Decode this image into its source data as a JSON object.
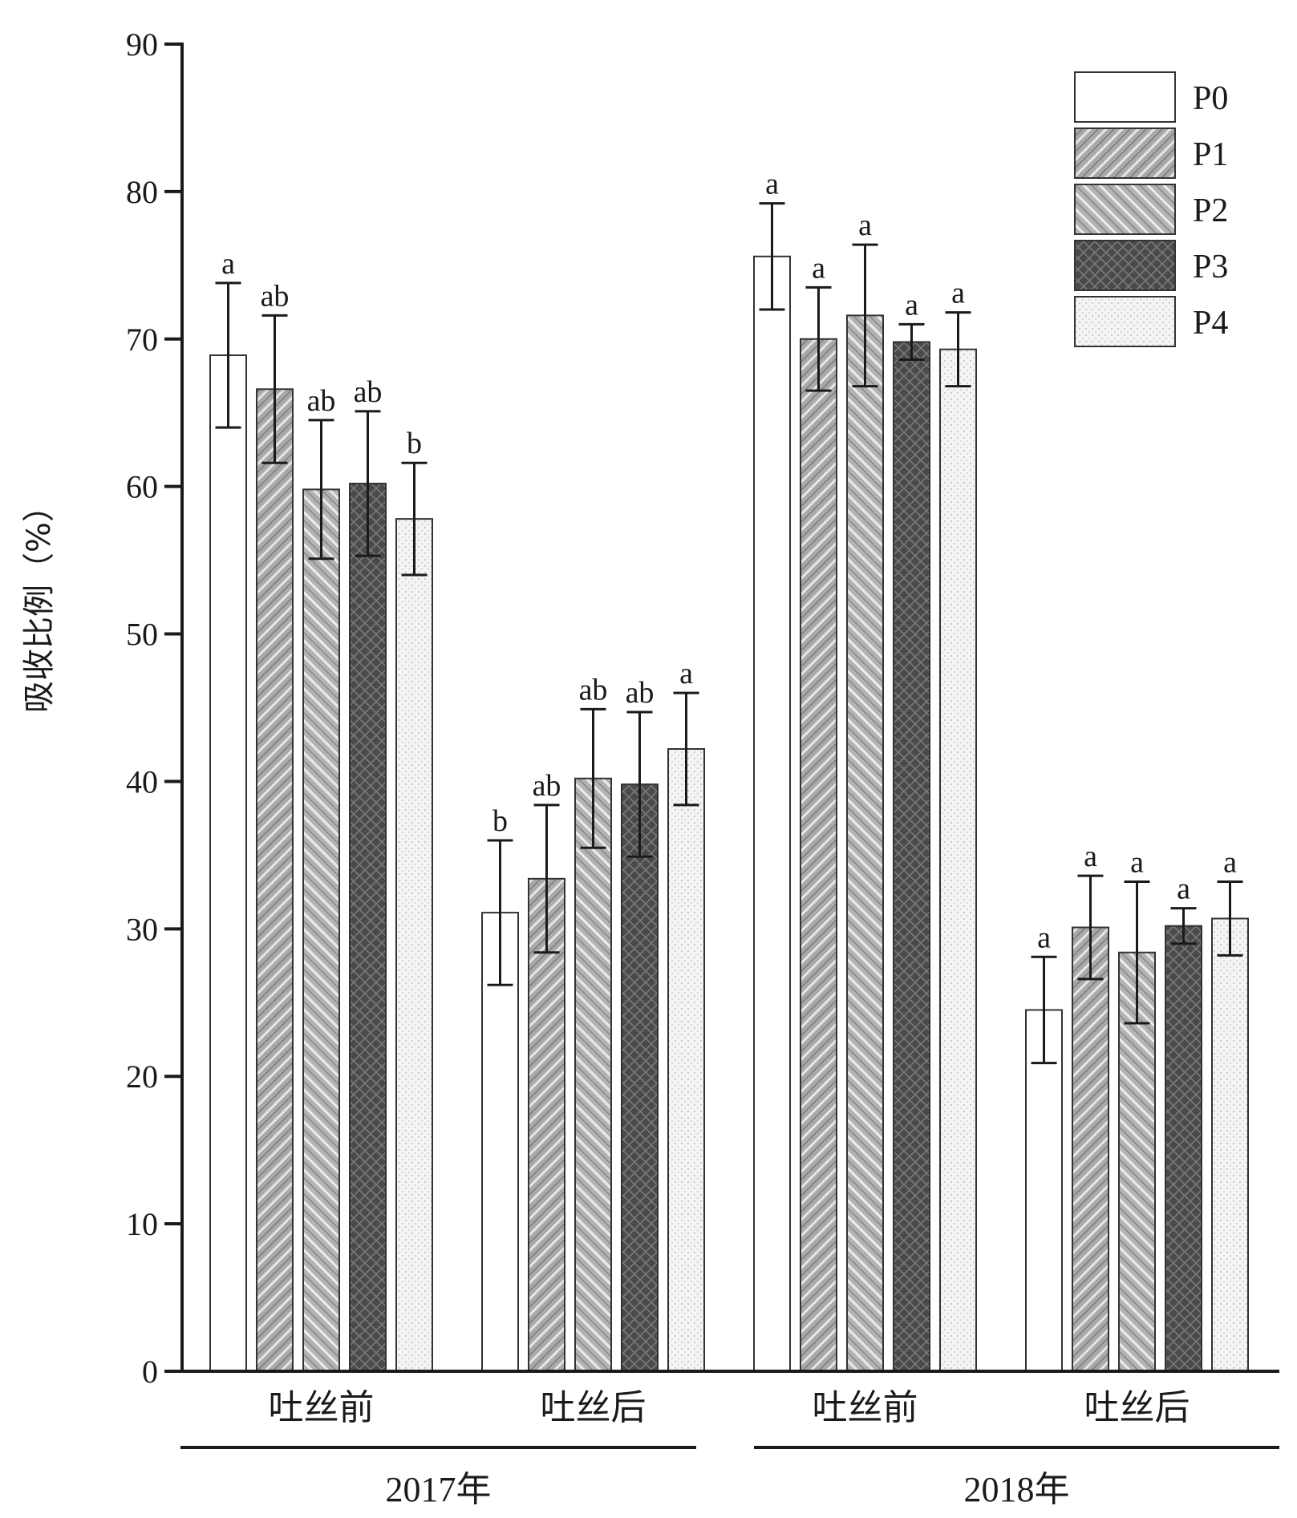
{
  "chart_data": {
    "type": "bar",
    "ylabel": "吸收比例（%）",
    "ylim": [
      0,
      90
    ],
    "yticks": [
      "0",
      "10",
      "20",
      "30",
      "40",
      "50",
      "60",
      "70",
      "80",
      "90"
    ],
    "grid": false,
    "legend_position": "top-right",
    "groups": [
      {
        "label": "吐丝前",
        "year": "2017年"
      },
      {
        "label": "吐丝后",
        "year": "2017年"
      },
      {
        "label": "吐丝前",
        "year": "2018年"
      },
      {
        "label": "吐丝后",
        "year": "2018年"
      }
    ],
    "years": [
      "2017年",
      "2018年"
    ],
    "series": [
      {
        "name": "P0",
        "values": [
          68.9,
          31.1,
          75.6,
          24.5
        ],
        "errors": [
          4.9,
          4.9,
          3.6,
          3.6
        ],
        "letters": [
          "a",
          "b",
          "a",
          "a"
        ]
      },
      {
        "name": "P1",
        "values": [
          66.6,
          33.4,
          70.0,
          30.1
        ],
        "errors": [
          5.0,
          5.0,
          3.5,
          3.5
        ],
        "letters": [
          "ab",
          "ab",
          "a",
          "a"
        ]
      },
      {
        "name": "P2",
        "values": [
          59.8,
          40.2,
          71.6,
          28.4
        ],
        "errors": [
          4.7,
          4.7,
          4.8,
          4.8
        ],
        "letters": [
          "ab",
          "ab",
          "a",
          "a"
        ]
      },
      {
        "name": "P3",
        "values": [
          60.2,
          39.8,
          69.8,
          30.2
        ],
        "errors": [
          4.9,
          4.9,
          1.2,
          1.2
        ],
        "letters": [
          "ab",
          "ab",
          "a",
          "a"
        ]
      },
      {
        "name": "P4",
        "values": [
          57.8,
          42.2,
          69.3,
          30.7
        ],
        "errors": [
          3.8,
          3.8,
          2.5,
          2.5
        ],
        "letters": [
          "b",
          "a",
          "a",
          "a"
        ]
      }
    ]
  }
}
